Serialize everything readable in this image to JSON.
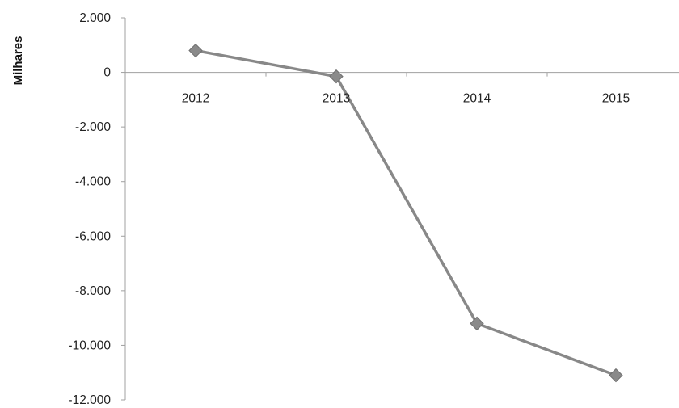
{
  "chart_data": {
    "type": "line",
    "title": "",
    "xlabel": "",
    "ylabel": "Milhares",
    "categories": [
      "2012",
      "2013",
      "2014",
      "2015"
    ],
    "series": [
      {
        "values": [
          800,
          -150,
          -9200,
          -11100
        ]
      }
    ],
    "ylim": [
      -12000,
      2000
    ],
    "y_ticks": [
      {
        "value": 2000,
        "label": "2.000"
      },
      {
        "value": 0,
        "label": "0"
      },
      {
        "value": -2000,
        "label": "-2.000"
      },
      {
        "value": -4000,
        "label": "-4.000"
      },
      {
        "value": -6000,
        "label": "-6.000"
      },
      {
        "value": -8000,
        "label": "-8.000"
      },
      {
        "value": -10000,
        "label": "-10.000"
      },
      {
        "value": -12000,
        "label": "-12.000"
      }
    ],
    "grid": false,
    "legend": "none",
    "colors": {
      "line": "#888888",
      "marker": "#8a8a8a",
      "axis": "#a0a0a0"
    }
  }
}
